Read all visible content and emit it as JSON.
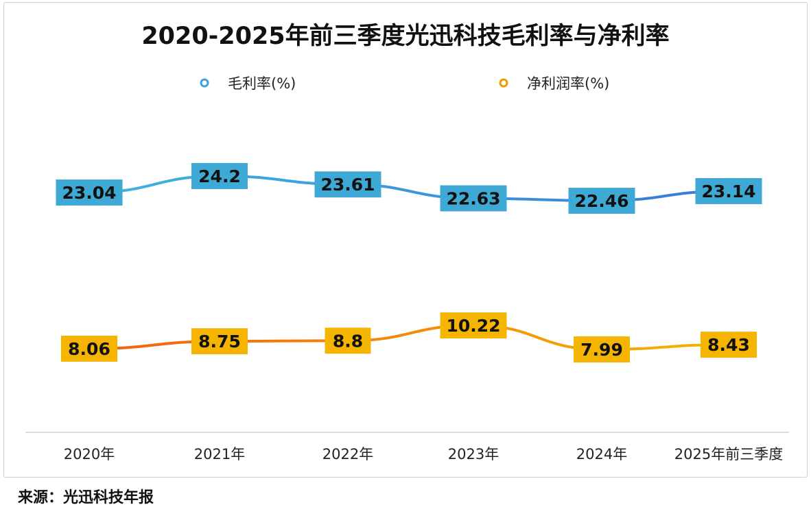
{
  "chart_data": {
    "type": "line",
    "title": "2020-2025年前三季度光迅科技毛利率与净利率",
    "categories": [
      "2020年",
      "2021年",
      "2022年",
      "2023年",
      "2024年",
      "2025年前三季度"
    ],
    "series": [
      {
        "name": "毛利率(%)",
        "values": [
          23.04,
          24.2,
          23.61,
          22.63,
          22.46,
          23.14
        ],
        "colors": [
          "#3fb4e0",
          "#3a7ad6"
        ],
        "label_color": "#3fa9d6"
      },
      {
        "name": "净利润率(%)",
        "values": [
          8.06,
          8.75,
          8.8,
          10.22,
          7.99,
          8.43
        ],
        "colors": [
          "#f0620f",
          "#f5b400"
        ],
        "label_color": "#f5b400"
      }
    ],
    "xlabel": "",
    "ylabel": "",
    "grid": false,
    "legend_position": "top"
  },
  "source": "来源：光迅科技年报"
}
